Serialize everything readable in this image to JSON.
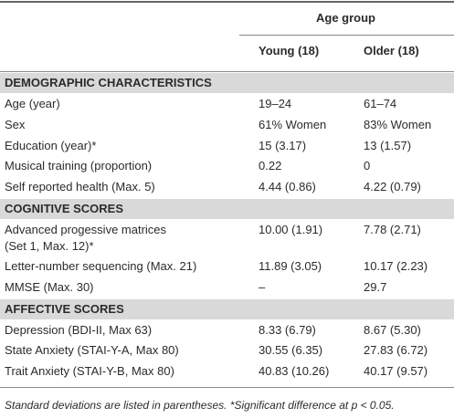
{
  "table": {
    "header": {
      "group": "Age group",
      "columns": [
        "Young (18)",
        "Older (18)"
      ]
    },
    "sections": [
      {
        "title": "DEMOGRAPHIC CHARACTERISTICS",
        "rows": [
          [
            "Age (year)",
            "19–24",
            "61–74"
          ],
          [
            "Sex",
            "61% Women",
            "83% Women"
          ],
          [
            "Education (year)*",
            "15 (3.17)",
            "13 (1.57)"
          ],
          [
            "Musical training (proportion)",
            "0.22",
            "0"
          ],
          [
            "Self reported health (Max. 5)",
            "4.44 (0.86)",
            "4.22 (0.79)"
          ]
        ]
      },
      {
        "title": "COGNITIVE SCORES",
        "rows": [
          [
            [
              "Advanced progessive matrices",
              "(Set 1, Max. 12)*"
            ],
            "10.00 (1.91)",
            "7.78 (2.71)"
          ],
          [
            "Letter-number sequencing (Max. 21)",
            "11.89 (3.05)",
            "10.17 (2.23)"
          ],
          [
            "MMSE (Max. 30)",
            "–",
            "29.7"
          ]
        ]
      },
      {
        "title": "AFFECTIVE SCORES",
        "rows": [
          [
            "Depression (BDI-II, Max 63)",
            "8.33 (6.79)",
            "8.67 (5.30)"
          ],
          [
            "State Anxiety (STAI-Y-A, Max 80)",
            "30.55 (6.35)",
            "27.83 (6.72)"
          ],
          [
            "Trait Anxiety (STAI-Y-B, Max 80)",
            "40.83 (10.26)",
            "40.17 (9.57)"
          ]
        ]
      }
    ],
    "footnote": "Standard deviations are listed in parentheses. *Significant difference at p < 0.05."
  }
}
